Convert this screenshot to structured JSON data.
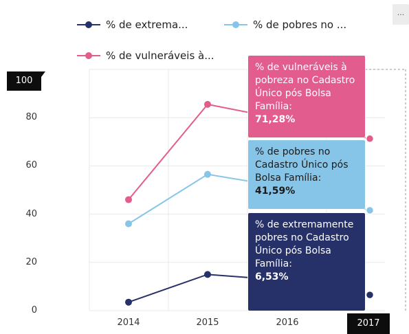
{
  "legend": [
    {
      "label": "% de extrema...",
      "color": "#253168"
    },
    {
      "label": "% de pobres no ...",
      "color": "#86c5e8"
    },
    {
      "label": "% de vulneráveis à...",
      "color": "#e35c8e"
    }
  ],
  "more_button": "...",
  "hover": {
    "y_value": "100",
    "x_value": "2017"
  },
  "tooltips": {
    "vulneraveis": {
      "label": "% de vulneráveis à pobreza no Cadastro Único pós Bolsa Família:",
      "value": "71,28%"
    },
    "pobres": {
      "label": "% de pobres no Cadastro Único pós Bolsa Família:",
      "value": "41,59%"
    },
    "extrema": {
      "label": "% de extremamente pobres no Cadastro Único pós Bolsa Família:",
      "value": "6,53%"
    }
  },
  "chart_data": {
    "type": "line",
    "x": [
      "2014",
      "2015",
      "2016",
      "2017"
    ],
    "yticks": [
      "0",
      "20",
      "40",
      "60",
      "80",
      "100"
    ],
    "ylim": [
      0,
      100
    ],
    "series": [
      {
        "name": "% de vulneráveis à pobreza no Cadastro Único pós Bolsa Família",
        "color": "#e35c8e",
        "values": [
          46,
          85.5,
          79,
          71.28
        ]
      },
      {
        "name": "% de pobres no Cadastro Único pós Bolsa Família",
        "color": "#86c5e8",
        "values": [
          36,
          56.5,
          51,
          41.59
        ]
      },
      {
        "name": "% de extremamente pobres no Cadastro Único pós Bolsa Família",
        "color": "#253168",
        "values": [
          3.5,
          15,
          12.5,
          6.53
        ]
      }
    ]
  }
}
